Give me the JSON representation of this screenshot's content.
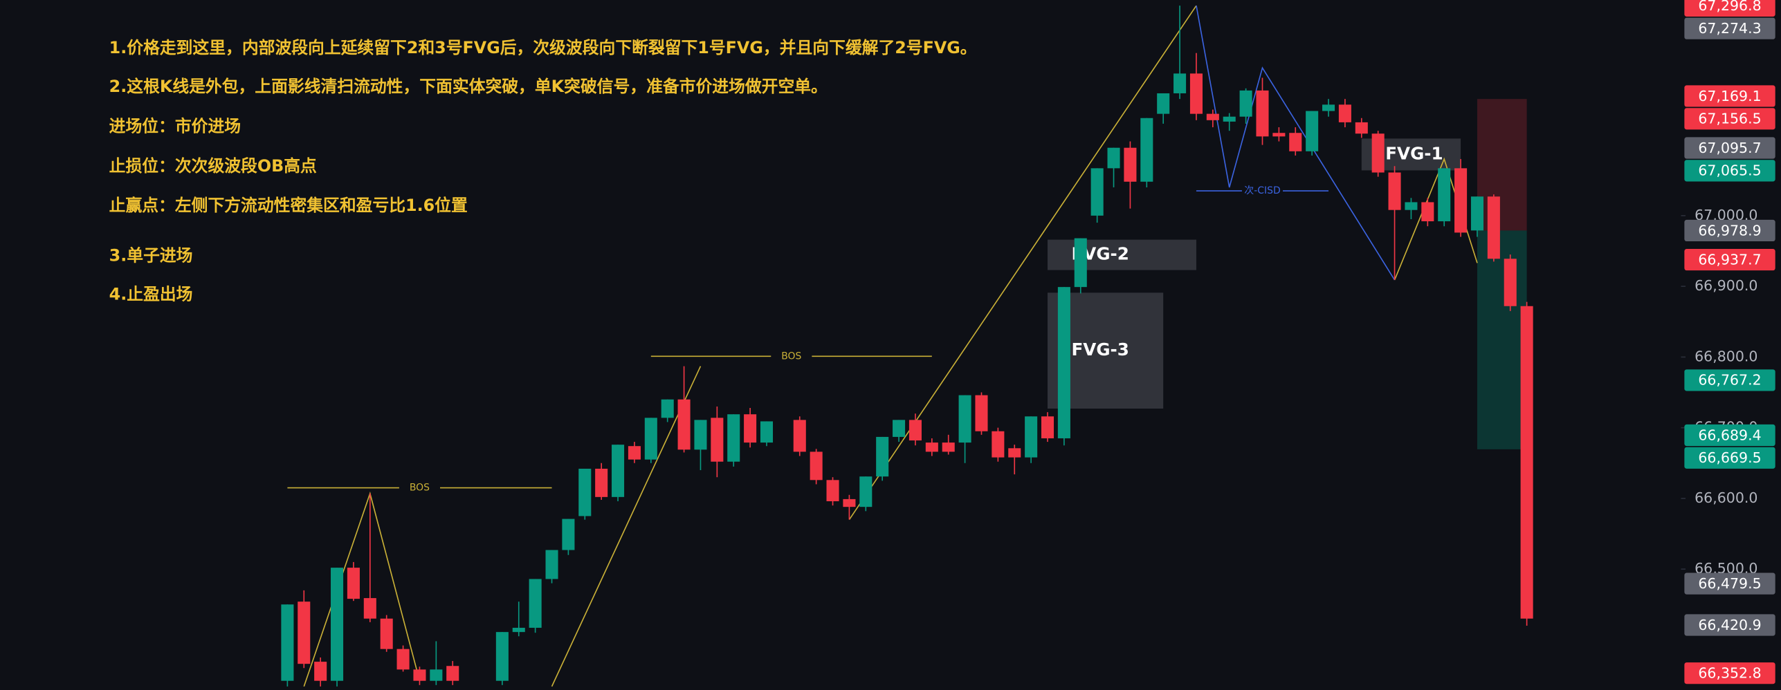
{
  "chart_data": {
    "type": "candlestick",
    "annotations": [
      "1.价格走到这里，内部波段向上延续留下2和3号FVG后，次级波段向下断裂留下1号FVG，并且向下缓解了2号FVG。",
      "2.这根K线是外包，上面影线清扫流动性，下面实体突破，单K突破信号，准备市价进场做开空单。",
      "进场位：市价进场",
      "止损位：次次级波段OB高点",
      "止赢点：左侧下方流动性密集区和盈亏比1.6位置",
      "3.单子进场",
      "4.止盈出场"
    ],
    "up_color": "#089981",
    "down_color": "#f23645",
    "open": [
      66342,
      66454,
      66369,
      66342,
      66502,
      66459,
      66430,
      66387,
      66358,
      66342,
      66363,
      null,
      null,
      66342,
      66411,
      66417,
      66486,
      66527,
      66575,
      66642,
      66602,
      66674,
      66655,
      66714,
      66740,
      66669,
      66714,
      66652,
      66719,
      66679,
      null,
      66711,
      66666,
      66626,
      66599,
      66588,
      66631,
      66687,
      66711,
      66679,
      66679,
      66679,
      66746,
      66695,
      66671,
      66658,
      66716,
      66685,
      66899,
      67000,
      67067,
      67096,
      67048,
      67144,
      67173,
      67201,
      67144,
      67133,
      67140,
      67177,
      67117,
      67117,
      67091,
      67148,
      67157,
      67132,
      67116,
      67061,
      67008,
      67019,
      66992,
      67067,
      66979,
      67027,
      66939,
      66872
    ],
    "high": [
      66450,
      66470,
      66375,
      66502,
      66510,
      66607,
      66435,
      66392,
      66362,
      66398,
      66370,
      null,
      null,
      66411,
      66454,
      66486,
      66527,
      66571,
      66642,
      66650,
      66676,
      66680,
      66714,
      66740,
      66787,
      66711,
      66730,
      66719,
      66728,
      66709,
      null,
      66716,
      66670,
      66630,
      66605,
      66631,
      66687,
      66711,
      66720,
      66685,
      66690,
      66746,
      66750,
      66700,
      66676,
      66716,
      66722,
      66899,
      66968,
      67067,
      67096,
      67105,
      67138,
      67173,
      67297,
      67230,
      67150,
      67145,
      67180,
      67195,
      67125,
      67125,
      67148,
      67165,
      67165,
      67138,
      67120,
      67070,
      67025,
      67025,
      67067,
      67080,
      67027,
      67030,
      66945,
      66878
    ],
    "low": [
      66334,
      66360,
      66334,
      66334,
      66455,
      66425,
      66383,
      66355,
      66336,
      66336,
      66336,
      null,
      null,
      66336,
      66405,
      66410,
      66480,
      66520,
      66570,
      66598,
      66596,
      66650,
      66650,
      66708,
      66665,
      66640,
      66630,
      66645,
      66672,
      66674,
      null,
      66660,
      66620,
      66590,
      66570,
      66582,
      66625,
      66680,
      66675,
      66660,
      66662,
      66650,
      66690,
      66652,
      66634,
      66650,
      66680,
      66675,
      66890,
      66990,
      67040,
      67010,
      67040,
      67130,
      67165,
      67135,
      67125,
      67120,
      67130,
      67100,
      67105,
      67085,
      67085,
      67140,
      67125,
      67110,
      67055,
      66909,
      66995,
      66985,
      66985,
      66970,
      66970,
      66935,
      66865,
      66420
    ],
    "close": [
      66450,
      66366,
      66342,
      66502,
      66458,
      66430,
      66387,
      66358,
      66342,
      66358,
      66342,
      null,
      null,
      66411,
      66417,
      66486,
      66527,
      66571,
      66642,
      66602,
      66676,
      66655,
      66714,
      66740,
      66669,
      66711,
      66652,
      66719,
      66679,
      66709,
      null,
      66666,
      66626,
      66596,
      66588,
      66631,
      66687,
      66711,
      66682,
      66666,
      66666,
      66746,
      66695,
      66658,
      66658,
      66716,
      66685,
      66899,
      66968,
      67067,
      67096,
      67048,
      67138,
      67173,
      67201,
      67144,
      67135,
      67140,
      67177,
      67112,
      67112,
      67091,
      67148,
      67157,
      67132,
      67116,
      67061,
      67008,
      67019,
      66992,
      67067,
      66976,
      67027,
      66939,
      66872,
      66430
    ],
    "ylim": [
      66329,
      67305
    ],
    "yticks": [
      {
        "value": 66500,
        "label": "66,500.0"
      },
      {
        "value": 66600,
        "label": "66,600.0"
      },
      {
        "value": 66700,
        "label": "66,700.0"
      },
      {
        "value": 66800,
        "label": "66,800.0"
      },
      {
        "value": 66900,
        "label": "66,900.0"
      },
      {
        "value": 67000,
        "label": "67,000.0"
      }
    ],
    "grid": false,
    "price_labels": [
      {
        "value": 67296.8,
        "label": "67,296.8",
        "color": "#f23645"
      },
      {
        "value": 67274.3,
        "label": "67,274.3",
        "color": "#5d606b"
      },
      {
        "value": 67169.1,
        "label": "67,169.1",
        "color": "#f23645"
      },
      {
        "value": 67156.5,
        "label": "67,156.5",
        "color": "#f23645"
      },
      {
        "value": 67095.7,
        "label": "67,095.7",
        "color": "#5d606b"
      },
      {
        "value": 67065.5,
        "label": "67,065.5",
        "color": "#089981"
      },
      {
        "value": 66978.9,
        "label": "66,978.9",
        "color": "#5d606b"
      },
      {
        "value": 66937.7,
        "label": "66,937.7",
        "color": "#f23645"
      },
      {
        "value": 66767.2,
        "label": "66,767.2",
        "color": "#089981"
      },
      {
        "value": 66689.4,
        "label": "66,689.4",
        "color": "#089981"
      },
      {
        "value": 66669.5,
        "label": "66,669.5",
        "color": "#089981"
      },
      {
        "value": 66479.5,
        "label": "66,479.5",
        "color": "#5d606b"
      },
      {
        "value": 66420.9,
        "label": "66,420.9",
        "color": "#5d606b"
      },
      {
        "value": 66352.8,
        "label": "66,352.8",
        "color": "#f23645"
      }
    ],
    "zones": [
      {
        "label": "FVG-1",
        "top": 67109,
        "bottom": 67064,
        "start": 65,
        "end": 71
      },
      {
        "label": "FVG-2",
        "top": 66966,
        "bottom": 66923,
        "start": 46,
        "end": 55
      },
      {
        "label": "FVG-3",
        "top": 66891,
        "bottom": 66727,
        "start": 46,
        "end": 53
      }
    ],
    "levels": [
      {
        "label": "BOS",
        "value": 66615,
        "start": 0,
        "end": 16,
        "color": "#c9b037"
      },
      {
        "label": "BOS",
        "value": 66801,
        "start": 22,
        "end": 39,
        "color": "#c9b037"
      },
      {
        "label": "次-CISD",
        "value": 67035,
        "start": 55,
        "end": 63,
        "color": "#3b63e0"
      }
    ],
    "position": {
      "entry": 66978.9,
      "stop": 67165,
      "target": 66669.5,
      "start": 72,
      "end": 75
    },
    "swings": [
      {
        "color": "#c9b037",
        "points": [
          [
            1,
            66334
          ],
          [
            5,
            66607
          ],
          [
            8,
            66342
          ]
        ]
      },
      {
        "color": "#c9b037",
        "points": [
          [
            16,
            66334
          ],
          [
            25,
            66787
          ]
        ]
      },
      {
        "color": "#c9b037",
        "points": [
          [
            34,
            66570
          ],
          [
            55,
            67297
          ]
        ]
      },
      {
        "color": "#3b63e0",
        "points": [
          [
            55,
            67297
          ],
          [
            57,
            67040
          ],
          [
            59,
            67209
          ],
          [
            67,
            66909
          ]
        ]
      },
      {
        "color": "#c9b037",
        "points": [
          [
            67,
            66909
          ],
          [
            70,
            67080
          ],
          [
            72,
            66933
          ]
        ]
      }
    ]
  }
}
